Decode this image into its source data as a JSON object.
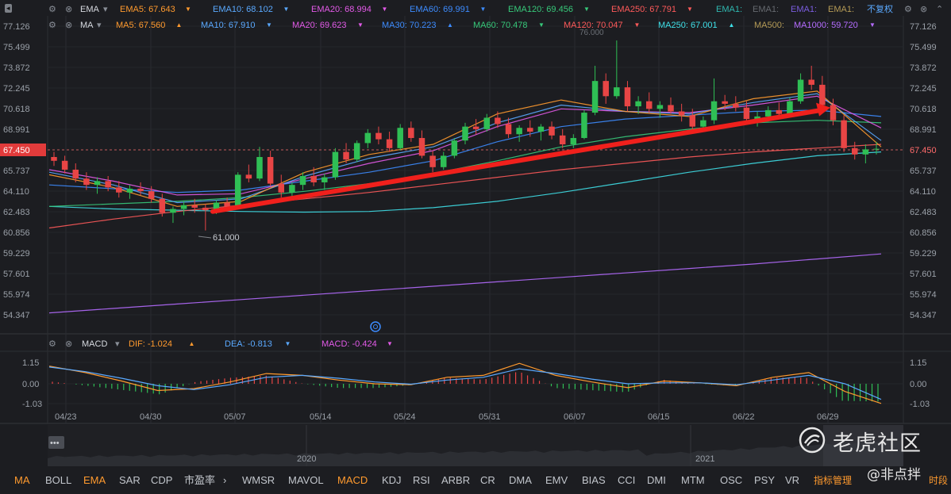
{
  "legend_ema": {
    "title": "EMA",
    "items": [
      {
        "label": "EMA5: 67.643",
        "color": "#ff9a2e"
      },
      {
        "label": "EMA10: 68.102",
        "color": "#5aa9ff"
      },
      {
        "label": "EMA20: 68.994",
        "color": "#e35ae8"
      },
      {
        "label": "EMA60: 69.991",
        "color": "#3d8cff"
      },
      {
        "label": "EMA120: 69.456",
        "color": "#37c97a"
      },
      {
        "label": "EMA250: 67.791",
        "color": "#ff5a5a"
      },
      {
        "label": "EMA1:",
        "color": "#2fb8b0"
      },
      {
        "label": "EMA1:",
        "color": "#666a70"
      },
      {
        "label": "EMA1:",
        "color": "#7b5de0"
      },
      {
        "label": "EMA1:",
        "color": "#b59b56"
      }
    ],
    "right_label": "不复权"
  },
  "legend_ma": {
    "title": "MA",
    "items": [
      {
        "label": "MA5: 67.560",
        "color": "#ff9a2e"
      },
      {
        "label": "MA10: 67.910",
        "color": "#5aa9ff"
      },
      {
        "label": "MA20: 69.623",
        "color": "#e35ae8"
      },
      {
        "label": "MA30: 70.223",
        "color": "#3d8cff"
      },
      {
        "label": "MA60: 70.478",
        "color": "#37c97a"
      },
      {
        "label": "MA120: 70.047",
        "color": "#ff5a5a"
      },
      {
        "label": "MA250: 67.001",
        "color": "#3fe0e8"
      },
      {
        "label": "MA500:",
        "color": "#b59b56"
      },
      {
        "label": "MA1000: 59.720",
        "color": "#b56cff"
      }
    ]
  },
  "legend_macd": {
    "title": "MACD",
    "items": [
      {
        "label": "DIF: -1.024",
        "color": "#ff9a2e"
      },
      {
        "label": "DEA: -0.813",
        "color": "#5aa9ff"
      },
      {
        "label": "MACD: -0.424",
        "color": "#e35ae8"
      }
    ]
  },
  "current_price": "67.450",
  "annotations": {
    "low": "61.000",
    "high_partial": "76.000"
  },
  "toolbar": {
    "items": [
      "MA",
      "BOLL",
      "EMA",
      "SAR",
      "CDP",
      "市盈率",
      "WMSR",
      "MAVOL",
      "MACD",
      "KDJ",
      "RSI",
      "ARBR",
      "CR",
      "DMA",
      "EMV",
      "BIAS",
      "CCI",
      "DMI",
      "MTM",
      "OSC",
      "PSY",
      "VR"
    ],
    "manage": "指标管理",
    "extra": "时段"
  },
  "navigator": {
    "years": [
      "2020",
      "2021"
    ]
  },
  "watermark": {
    "brand": "老虎社区",
    "user": "@非点拌"
  },
  "chart_data": {
    "type": "candlestick",
    "price_axis": {
      "ticks": [
        "77.126",
        "75.499",
        "73.872",
        "72.245",
        "70.618",
        "68.991",
        "67.450",
        "65.737",
        "64.110",
        "62.483",
        "60.856",
        "59.229",
        "57.601",
        "55.974",
        "54.347"
      ],
      "range": [
        54.347,
        77.126
      ]
    },
    "macd_axis": {
      "ticks": [
        "1.15",
        "0.00",
        "-1.03"
      ],
      "range": [
        -1.03,
        1.15
      ]
    },
    "x_ticks": [
      "04/23",
      "04/30",
      "05/07",
      "05/14",
      "05/24",
      "05/31",
      "06/07",
      "06/15",
      "06/22",
      "06/29"
    ],
    "candles": [
      [
        66.8,
        67.2,
        66.1,
        66.5
      ],
      [
        66.5,
        66.9,
        65.5,
        65.8
      ],
      [
        65.8,
        66.3,
        64.8,
        65.1
      ],
      [
        65.1,
        65.6,
        64.2,
        64.6
      ],
      [
        64.6,
        65.2,
        63.9,
        64.9
      ],
      [
        64.9,
        65.3,
        64.1,
        64.4
      ],
      [
        64.4,
        64.9,
        63.6,
        64.0
      ],
      [
        64.0,
        64.6,
        63.5,
        64.3
      ],
      [
        64.3,
        64.8,
        63.8,
        64.1
      ],
      [
        64.1,
        64.5,
        63.2,
        63.5
      ],
      [
        63.5,
        63.9,
        62.1,
        62.4
      ],
      [
        62.4,
        62.9,
        61.6,
        62.7
      ],
      [
        62.7,
        63.3,
        62.2,
        63.0
      ],
      [
        63.0,
        63.5,
        62.4,
        62.8
      ],
      [
        62.8,
        63.1,
        61.0,
        62.6
      ],
      [
        62.6,
        63.4,
        62.3,
        63.2
      ],
      [
        63.2,
        63.6,
        62.5,
        62.9
      ],
      [
        62.9,
        65.6,
        62.8,
        65.4
      ],
      [
        65.4,
        66.2,
        64.8,
        65.1
      ],
      [
        65.1,
        67.6,
        64.9,
        66.8
      ],
      [
        66.8,
        67.3,
        64.5,
        64.7
      ],
      [
        64.7,
        65.4,
        63.6,
        64.0
      ],
      [
        64.0,
        64.8,
        63.4,
        64.6
      ],
      [
        64.6,
        65.6,
        64.2,
        65.3
      ],
      [
        65.3,
        66.0,
        64.5,
        64.8
      ],
      [
        64.8,
        65.5,
        64.2,
        65.2
      ],
      [
        65.2,
        67.5,
        65.0,
        67.2
      ],
      [
        67.2,
        67.9,
        66.3,
        66.6
      ],
      [
        66.6,
        68.1,
        66.4,
        67.9
      ],
      [
        67.9,
        69.0,
        67.5,
        68.7
      ],
      [
        68.7,
        69.2,
        67.8,
        68.2
      ],
      [
        68.2,
        68.8,
        67.2,
        67.5
      ],
      [
        67.5,
        69.4,
        67.3,
        69.1
      ],
      [
        69.1,
        69.6,
        68.0,
        68.3
      ],
      [
        68.3,
        68.9,
        66.7,
        66.9
      ],
      [
        66.9,
        67.3,
        65.6,
        66.0
      ],
      [
        66.0,
        67.2,
        65.8,
        66.9
      ],
      [
        66.9,
        68.3,
        66.7,
        68.1
      ],
      [
        68.1,
        69.5,
        67.8,
        69.2
      ],
      [
        69.2,
        69.8,
        68.6,
        69.0
      ],
      [
        69.0,
        70.2,
        68.8,
        69.9
      ],
      [
        69.9,
        70.4,
        69.1,
        69.4
      ],
      [
        69.4,
        69.9,
        68.3,
        68.6
      ],
      [
        68.6,
        69.3,
        68.0,
        69.1
      ],
      [
        69.1,
        69.7,
        68.4,
        68.8
      ],
      [
        68.8,
        69.4,
        68.1,
        69.2
      ],
      [
        69.2,
        69.6,
        68.2,
        68.5
      ],
      [
        68.5,
        69.0,
        67.5,
        67.8
      ],
      [
        67.8,
        68.6,
        67.5,
        68.3
      ],
      [
        68.3,
        70.5,
        68.2,
        70.3
      ],
      [
        70.3,
        74.0,
        70.1,
        72.8
      ],
      [
        72.8,
        73.4,
        71.0,
        71.6
      ],
      [
        71.6,
        76.0,
        71.4,
        72.3
      ],
      [
        72.3,
        72.8,
        70.4,
        70.8
      ],
      [
        70.8,
        71.6,
        70.2,
        71.2
      ],
      [
        71.2,
        71.9,
        70.3,
        70.6
      ],
      [
        70.6,
        71.2,
        69.9,
        70.9
      ],
      [
        70.9,
        71.5,
        70.2,
        70.4
      ],
      [
        70.4,
        71.0,
        69.6,
        70.1
      ],
      [
        70.1,
        70.6,
        68.9,
        69.2
      ],
      [
        69.2,
        70.0,
        68.9,
        69.7
      ],
      [
        69.7,
        73.0,
        69.4,
        71.2
      ],
      [
        71.2,
        71.7,
        70.5,
        71.0
      ],
      [
        71.0,
        71.6,
        70.4,
        70.7
      ],
      [
        70.7,
        71.2,
        69.5,
        69.8
      ],
      [
        69.8,
        70.4,
        69.2,
        70.0
      ],
      [
        70.0,
        70.8,
        69.6,
        70.5
      ],
      [
        70.5,
        71.1,
        69.8,
        70.2
      ],
      [
        70.2,
        71.5,
        70.0,
        71.2
      ],
      [
        71.2,
        73.4,
        71.0,
        72.9
      ],
      [
        72.9,
        74.0,
        72.1,
        72.5
      ],
      [
        72.5,
        73.2,
        70.5,
        70.9
      ],
      [
        70.9,
        71.4,
        69.3,
        69.7
      ],
      [
        69.7,
        70.1,
        67.2,
        67.5
      ],
      [
        67.5,
        68.0,
        66.6,
        67.0
      ],
      [
        67.0,
        67.8,
        66.3,
        67.4
      ],
      [
        67.4,
        68.0,
        67.0,
        67.45
      ]
    ],
    "ma_lines": [
      {
        "name": "MA250",
        "color": "#3fe0e8",
        "values": [
          62.9,
          62.7,
          62.6,
          62.5,
          62.45,
          62.5,
          62.8,
          63.3,
          64.0,
          64.8,
          65.6,
          66.3,
          66.9,
          67.2
        ]
      },
      {
        "name": "MA1000",
        "color": "#b56cff",
        "values": [
          54.5,
          54.85,
          55.2,
          55.55,
          55.9,
          56.25,
          56.6,
          56.95,
          57.3,
          57.65,
          58.0,
          58.35,
          58.75,
          59.15
        ]
      },
      {
        "name": "EMA250",
        "color": "#ff5a5a",
        "values": [
          61.2,
          61.9,
          62.5,
          63.0,
          63.5,
          64.0,
          64.6,
          65.2,
          65.8,
          66.3,
          66.8,
          67.2,
          67.5,
          67.8
        ]
      },
      {
        "name": "EMA120",
        "color": "#37c97a",
        "values": [
          62.9,
          63.1,
          63.3,
          63.6,
          64.1,
          64.7,
          65.5,
          66.5,
          67.6,
          68.4,
          69.0,
          69.5,
          69.7,
          69.5
        ]
      },
      {
        "name": "EMA60",
        "color": "#3d8cff",
        "values": [
          64.6,
          64.3,
          64.0,
          64.2,
          64.9,
          65.6,
          66.5,
          68.0,
          69.2,
          69.8,
          70.1,
          70.4,
          70.5,
          70.0
        ]
      },
      {
        "name": "EMA20",
        "color": "#e35ae8",
        "values": [
          65.8,
          64.9,
          63.8,
          63.9,
          65.1,
          66.3,
          67.3,
          69.2,
          70.6,
          70.4,
          70.3,
          70.9,
          71.6,
          69.1
        ]
      },
      {
        "name": "EMA10",
        "color": "#5aa9ff",
        "values": [
          65.6,
          64.6,
          63.2,
          63.5,
          65.3,
          66.7,
          67.6,
          69.5,
          70.9,
          70.4,
          70.2,
          71.1,
          71.8,
          68.1
        ]
      },
      {
        "name": "EMA5",
        "color": "#ff9a2e",
        "values": [
          65.4,
          64.4,
          62.9,
          63.3,
          65.6,
          67.0,
          67.8,
          70.2,
          71.3,
          70.4,
          70.0,
          71.4,
          72.0,
          67.6
        ]
      }
    ],
    "trendline": {
      "from": {
        "x": "05/05",
        "y": 62.5
      },
      "to": {
        "x": "06/30",
        "y": 70.7
      },
      "color": "#f0201c"
    },
    "macd": {
      "dif": [
        0.95,
        0.6,
        0.15,
        -0.35,
        -0.25,
        0.1,
        0.55,
        0.45,
        0.2,
        0.0,
        -0.05,
        0.35,
        0.45,
        1.1,
        0.45,
        0.1,
        -0.2,
        0.15,
        0.05,
        -0.1,
        0.35,
        0.6,
        -0.4,
        -1.02
      ],
      "dea": [
        0.9,
        0.65,
        0.3,
        -0.1,
        -0.3,
        -0.05,
        0.35,
        0.45,
        0.3,
        0.1,
        -0.02,
        0.2,
        0.35,
        0.8,
        0.55,
        0.25,
        0.0,
        0.05,
        0.05,
        -0.05,
        0.2,
        0.45,
        0.0,
        -0.81
      ],
      "hist": [
        0.05,
        -0.05,
        -0.15,
        -0.25,
        0.05,
        0.15,
        0.2,
        0.0,
        -0.1,
        -0.1,
        -0.03,
        0.15,
        0.1,
        0.3,
        -0.1,
        -0.15,
        -0.2,
        0.1,
        0.0,
        -0.05,
        0.15,
        0.15,
        -0.4,
        -0.42
      ]
    }
  }
}
